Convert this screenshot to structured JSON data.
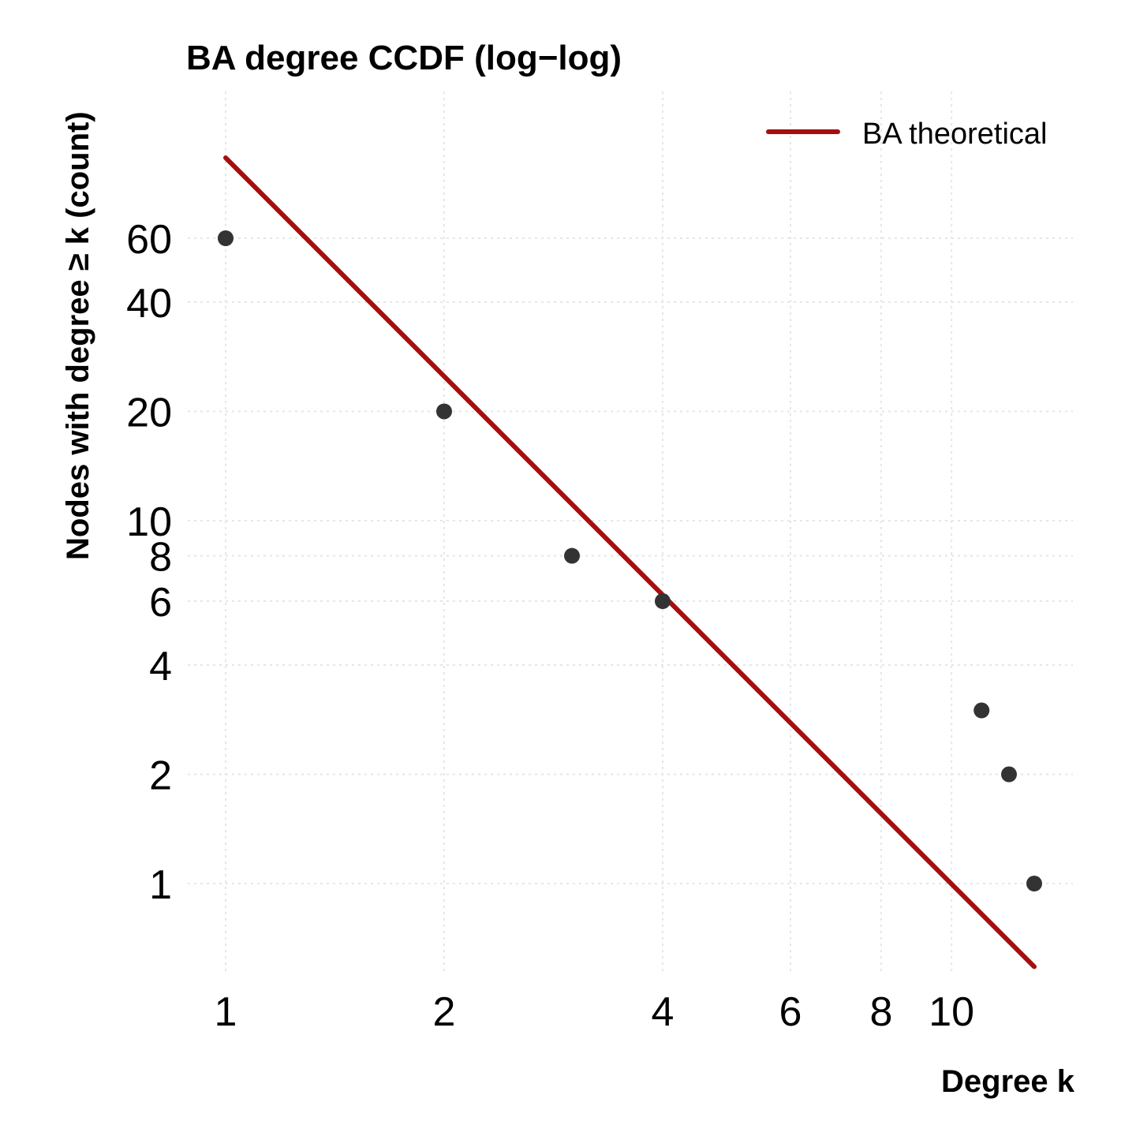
{
  "chart_data": {
    "type": "scatter",
    "title": "BA degree CCDF (log−log)",
    "xlabel": "Degree k",
    "ylabel": "Nodes with degree ≥ k (count)",
    "x_scale": "log",
    "y_scale": "log",
    "xlim": [
      1,
      14
    ],
    "ylim": [
      0.6,
      100
    ],
    "x_ticks": [
      1,
      2,
      4,
      6,
      8,
      10
    ],
    "x_tick_labels": [
      "1",
      "2",
      "4",
      "6",
      "8",
      "10"
    ],
    "y_ticks": [
      1,
      2,
      4,
      6,
      8,
      10,
      20,
      40,
      60
    ],
    "y_tick_labels": [
      "1",
      "2",
      "4",
      "6",
      "8",
      "10",
      "20",
      "40",
      "60"
    ],
    "grid": true,
    "legend_position": "top-right",
    "series": [
      {
        "kind": "points",
        "color": "#333333",
        "x": [
          1,
          2,
          3,
          4,
          11,
          12,
          13
        ],
        "y": [
          60,
          20,
          8,
          6,
          3,
          2,
          1
        ]
      },
      {
        "name": "BA theoretical",
        "kind": "line",
        "color": "#a50f0f",
        "x": [
          1,
          13
        ],
        "y": [
          100,
          0.59
        ]
      }
    ]
  }
}
